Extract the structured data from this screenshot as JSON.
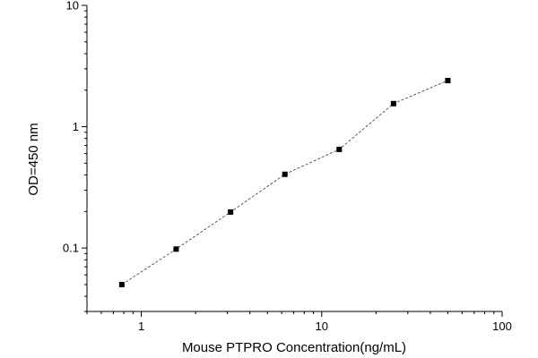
{
  "chart_data": {
    "type": "scatter",
    "xscale": "log",
    "yscale": "log",
    "xlim": [
      0.5,
      100
    ],
    "ylim": [
      0.03,
      10
    ],
    "xlabel": "Mouse PTPRO Concentration(ng/mL)",
    "ylabel": "OD=450 nm",
    "x_ticks": [
      "1",
      "10",
      "100"
    ],
    "y_ticks": [
      "0.1",
      "1",
      "10"
    ],
    "grid": false,
    "legend": "none",
    "series": [
      {
        "x": [
          0.78,
          1.56,
          3.125,
          6.25,
          12.5,
          25,
          50
        ],
        "y": [
          0.05,
          0.098,
          0.198,
          0.405,
          0.65,
          1.55,
          2.4
        ],
        "connected": true,
        "marker": "square"
      }
    ]
  }
}
